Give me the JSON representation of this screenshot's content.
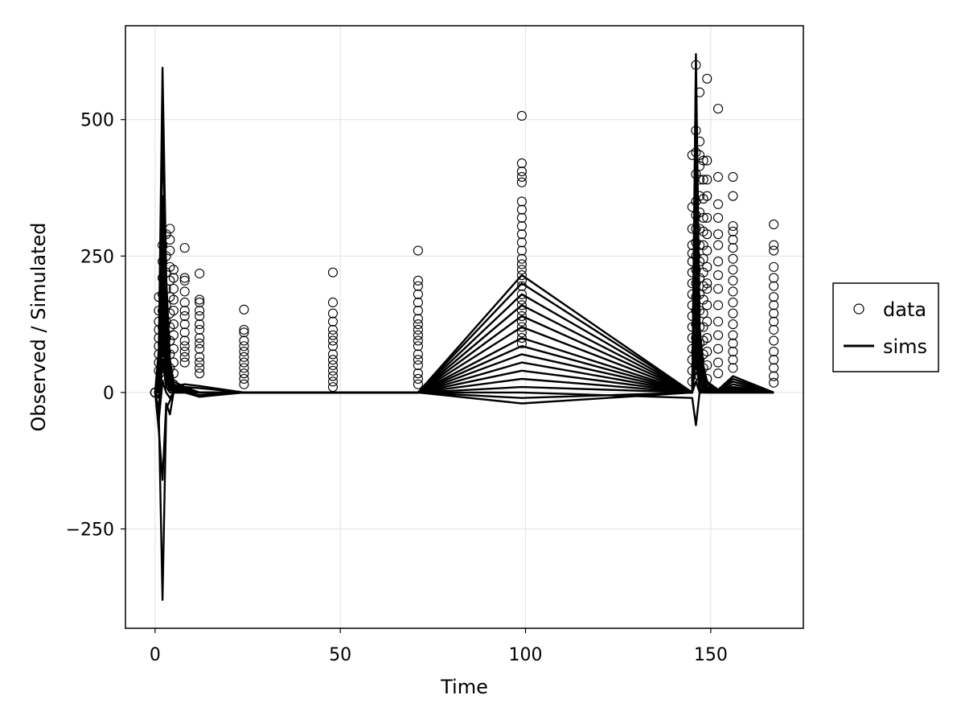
{
  "chart_data": {
    "type": "scatter+line",
    "title": "",
    "xlabel": "Time",
    "ylabel": "Observed / Simulated",
    "xlim": [
      -8,
      175
    ],
    "ylim": [
      -432,
      672
    ],
    "xticks": [
      0,
      50,
      100,
      150
    ],
    "yticks": [
      -250,
      0,
      250,
      500
    ],
    "xtick_labels": [
      "0",
      "50",
      "100",
      "150"
    ],
    "ytick_labels": [
      "−250",
      "0",
      "250",
      "500"
    ],
    "grid": true,
    "legend": {
      "position": "right",
      "entries": [
        {
          "label": "data",
          "marker": "open-circle"
        },
        {
          "label": "sims",
          "marker": "line"
        }
      ]
    },
    "colors": {
      "data": "#000000",
      "sims": "#000000",
      "grid": "#e5e5e5"
    },
    "data_points": {
      "columns": [
        {
          "x": 0,
          "y": [
            0,
            0,
            0,
            0,
            0,
            0,
            0,
            0
          ]
        },
        {
          "x": 1,
          "y": [
            40,
            55,
            70,
            85,
            100,
            115,
            130,
            150,
            175
          ]
        },
        {
          "x": 2,
          "y": [
            30,
            60,
            90,
            120,
            150,
            180,
            210,
            240,
            270
          ]
        },
        {
          "x": 3,
          "y": [
            25,
            50,
            75,
            100,
            130,
            160,
            190,
            220,
            250,
            290
          ]
        },
        {
          "x": 4,
          "y": [
            20,
            45,
            70,
            95,
            120,
            145,
            175,
            205,
            230,
            260,
            280,
            300
          ]
        },
        {
          "x": 5,
          "y": [
            15,
            35,
            55,
            80,
            105,
            125,
            150,
            170,
            190,
            210,
            225
          ]
        },
        {
          "x": 8,
          "y": [
            55,
            65,
            75,
            85,
            95,
            110,
            125,
            140,
            150,
            165,
            185,
            205,
            210,
            265
          ]
        },
        {
          "x": 12,
          "y": [
            35,
            45,
            55,
            65,
            80,
            90,
            100,
            115,
            125,
            140,
            150,
            165,
            170,
            218
          ]
        },
        {
          "x": 24,
          "y": [
            15,
            25,
            35,
            45,
            55,
            65,
            75,
            85,
            95,
            110,
            115,
            152
          ]
        },
        {
          "x": 48,
          "y": [
            10,
            20,
            30,
            40,
            50,
            60,
            70,
            85,
            95,
            105,
            115,
            130,
            145,
            165,
            220
          ]
        },
        {
          "x": 71,
          "y": [
            15,
            25,
            35,
            50,
            60,
            70,
            85,
            95,
            105,
            115,
            125,
            135,
            150,
            165,
            180,
            195,
            205,
            260
          ]
        },
        {
          "x": 99,
          "y": [
            90,
            100,
            110,
            120,
            130,
            140,
            150,
            160,
            170,
            180,
            195,
            205,
            215,
            225,
            235,
            245,
            260,
            275,
            290,
            305,
            320,
            335,
            350,
            385,
            395,
            405,
            420,
            507
          ]
        },
        {
          "x": 145,
          "y": [
            20,
            40,
            60,
            80,
            100,
            120,
            140,
            160,
            180,
            200,
            220,
            240,
            255,
            270,
            300,
            340,
            435
          ]
        },
        {
          "x": 146,
          "y": [
            25,
            50,
            75,
            100,
            125,
            150,
            175,
            200,
            225,
            250,
            275,
            300,
            325,
            350,
            400,
            440,
            480,
            600
          ]
        },
        {
          "x": 147,
          "y": [
            30,
            60,
            90,
            120,
            150,
            180,
            210,
            240,
            270,
            300,
            330,
            360,
            390,
            415,
            435,
            460,
            550
          ]
        },
        {
          "x": 148,
          "y": [
            20,
            45,
            70,
            95,
            120,
            145,
            170,
            195,
            220,
            245,
            270,
            295,
            320,
            355,
            390,
            425
          ]
        },
        {
          "x": 149,
          "y": [
            25,
            50,
            75,
            100,
            130,
            160,
            190,
            200,
            230,
            260,
            290,
            320,
            360,
            390,
            425,
            575
          ]
        },
        {
          "x": 152,
          "y": [
            35,
            55,
            80,
            105,
            130,
            160,
            190,
            215,
            240,
            270,
            290,
            320,
            345,
            395,
            520
          ]
        },
        {
          "x": 156,
          "y": [
            45,
            60,
            75,
            90,
            105,
            125,
            145,
            165,
            185,
            205,
            225,
            245,
            265,
            280,
            295,
            305,
            360,
            395
          ]
        },
        {
          "x": 167,
          "y": [
            18,
            30,
            45,
            60,
            75,
            95,
            115,
            130,
            145,
            160,
            175,
            195,
            210,
            230,
            260,
            270,
            308
          ]
        }
      ]
    },
    "sims": {
      "x": [
        0,
        1,
        2,
        3,
        4,
        5,
        8,
        12,
        24,
        48,
        71,
        99,
        145,
        146,
        147,
        148,
        149,
        152,
        156,
        167
      ],
      "series": [
        {
          "values": [
            0,
            80,
            595,
            210,
            60,
            20,
            10,
            0,
            0,
            0,
            0,
            215,
            0,
            620,
            120,
            50,
            20,
            5,
            30,
            0
          ]
        },
        {
          "values": [
            0,
            60,
            480,
            180,
            50,
            15,
            8,
            0,
            0,
            0,
            0,
            200,
            0,
            590,
            100,
            40,
            15,
            5,
            25,
            0
          ]
        },
        {
          "values": [
            0,
            40,
            360,
            140,
            40,
            10,
            5,
            0,
            0,
            0,
            0,
            180,
            0,
            500,
            90,
            30,
            10,
            5,
            20,
            0
          ]
        },
        {
          "values": [
            0,
            30,
            320,
            120,
            35,
            10,
            5,
            0,
            0,
            0,
            0,
            160,
            0,
            460,
            80,
            25,
            10,
            3,
            15,
            0
          ]
        },
        {
          "values": [
            0,
            20,
            260,
            90,
            30,
            8,
            3,
            0,
            0,
            0,
            0,
            140,
            0,
            400,
            60,
            20,
            8,
            3,
            10,
            0
          ]
        },
        {
          "values": [
            0,
            15,
            220,
            70,
            25,
            6,
            2,
            0,
            0,
            0,
            0,
            120,
            0,
            360,
            50,
            15,
            6,
            2,
            8,
            0
          ]
        },
        {
          "values": [
            0,
            10,
            180,
            60,
            20,
            5,
            2,
            0,
            0,
            0,
            0,
            100,
            0,
            300,
            40,
            12,
            5,
            2,
            6,
            0
          ]
        },
        {
          "values": [
            0,
            5,
            150,
            40,
            15,
            4,
            1,
            0,
            0,
            0,
            0,
            85,
            0,
            250,
            30,
            10,
            4,
            1,
            4,
            0
          ]
        },
        {
          "values": [
            0,
            0,
            120,
            30,
            10,
            3,
            1,
            0,
            0,
            0,
            0,
            70,
            0,
            200,
            25,
            8,
            3,
            1,
            3,
            0
          ]
        },
        {
          "values": [
            0,
            -10,
            90,
            20,
            5,
            2,
            0,
            0,
            0,
            0,
            0,
            55,
            0,
            150,
            20,
            5,
            2,
            0,
            2,
            0
          ]
        },
        {
          "values": [
            0,
            -30,
            60,
            10,
            0,
            0,
            0,
            0,
            0,
            0,
            0,
            40,
            0,
            100,
            10,
            3,
            0,
            0,
            0,
            0
          ]
        },
        {
          "values": [
            0,
            -50,
            20,
            0,
            -10,
            0,
            0,
            0,
            0,
            0,
            0,
            25,
            0,
            60,
            5,
            0,
            0,
            0,
            0,
            0
          ]
        },
        {
          "values": [
            0,
            -70,
            -160,
            -20,
            -40,
            0,
            0,
            -5,
            0,
            0,
            0,
            10,
            0,
            20,
            0,
            0,
            0,
            0,
            0,
            0
          ]
        },
        {
          "values": [
            0,
            -40,
            -380,
            -30,
            -15,
            0,
            0,
            -8,
            0,
            0,
            0,
            0,
            -10,
            -60,
            0,
            0,
            0,
            0,
            0,
            0
          ]
        },
        {
          "values": [
            0,
            50,
            340,
            170,
            45,
            12,
            15,
            12,
            0,
            0,
            0,
            -10,
            0,
            130,
            40,
            20,
            10,
            5,
            10,
            0
          ]
        },
        {
          "values": [
            0,
            35,
            300,
            150,
            40,
            10,
            10,
            8,
            0,
            0,
            0,
            -20,
            0,
            80,
            30,
            15,
            5,
            2,
            5,
            0
          ]
        }
      ]
    }
  }
}
